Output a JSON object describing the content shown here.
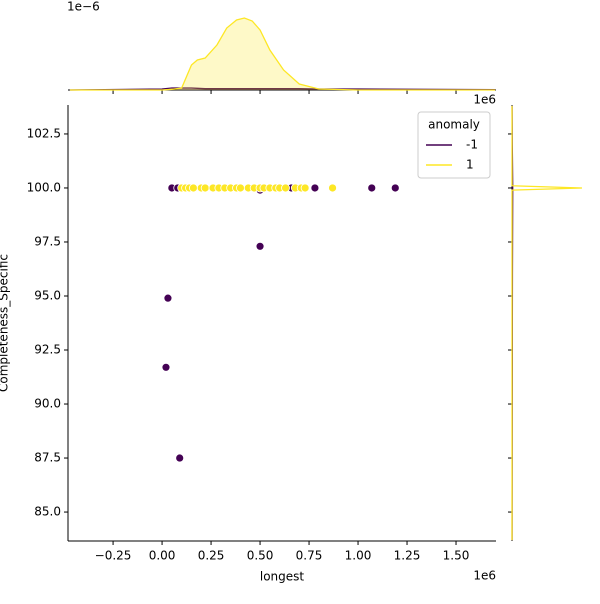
{
  "chart_data": [
    {
      "type": "scatter",
      "xlabel": "longest",
      "ylabel": "Completeness_Specific",
      "x_offset": "1e6",
      "xlim": [
        -0.48,
        1.704
      ],
      "ylim": [
        83.66,
        103.84
      ],
      "xticks": [
        {
          "value": -0.25,
          "label": "−0.25"
        },
        {
          "value": 0,
          "label": "0.00"
        },
        {
          "value": 0.25,
          "label": "0.25"
        },
        {
          "value": 0.5,
          "label": "0.50"
        },
        {
          "value": 0.75,
          "label": "0.75"
        },
        {
          "value": 1,
          "label": "1.00"
        },
        {
          "value": 1.25,
          "label": "1.25"
        },
        {
          "value": 1.5,
          "label": "1.50"
        }
      ],
      "yticks": [
        {
          "value": 85,
          "label": "85.0"
        },
        {
          "value": 87.5,
          "label": "87.5"
        },
        {
          "value": 90,
          "label": "90.0"
        },
        {
          "value": 92.5,
          "label": "92.5"
        },
        {
          "value": 95,
          "label": "95.0"
        },
        {
          "value": 97.5,
          "label": "97.5"
        },
        {
          "value": 100,
          "label": "100.0"
        },
        {
          "value": 102.5,
          "label": "102.5"
        }
      ],
      "legend_title": "anomaly",
      "legend": "upper right",
      "series": [
        {
          "name": "-1",
          "color": "#440154",
          "x": [
            0.05,
            0.08,
            0.5,
            0.66,
            0.78,
            1.07,
            1.19,
            0.5,
            0.03,
            0.02,
            0.09
          ],
          "values": [
            100,
            100,
            99.9,
            100,
            100,
            100,
            100,
            97.3,
            94.9,
            91.7,
            87.5
          ]
        },
        {
          "name": "1",
          "color": "#fde725",
          "x": [
            0.1,
            0.12,
            0.14,
            0.16,
            0.2,
            0.22,
            0.26,
            0.29,
            0.32,
            0.35,
            0.38,
            0.4,
            0.44,
            0.47,
            0.5,
            0.52,
            0.55,
            0.58,
            0.6,
            0.63,
            0.68,
            0.71,
            0.73,
            0.87
          ],
          "values": [
            100,
            100,
            100,
            100,
            100,
            100,
            100,
            100,
            100,
            100,
            100,
            100,
            100,
            100,
            100,
            100,
            100,
            100,
            100,
            100,
            100,
            100,
            100,
            100
          ]
        }
      ]
    },
    {
      "type": "kde",
      "orient": "x",
      "offset_label": "1e−6",
      "x_offset": "1e6",
      "xlim": [
        -0.48,
        1.704
      ],
      "ylim": [
        0,
        2.4
      ],
      "x": [
        -0.47,
        0.0,
        0.05,
        0.1,
        0.15,
        0.18,
        0.22,
        0.28,
        0.33,
        0.38,
        0.42,
        0.46,
        0.5,
        0.55,
        0.62,
        0.7,
        0.8,
        1.0,
        1.7
      ],
      "series": [
        {
          "color": "#440154",
          "values": [
            0,
            0.03,
            0.06,
            0.06,
            0.06,
            0.05,
            0.04,
            0.04,
            0.04,
            0.04,
            0.04,
            0.04,
            0.04,
            0.04,
            0.04,
            0.04,
            0.03,
            0.03,
            0.01
          ]
        },
        {
          "color": "#fde725",
          "values": [
            0,
            0,
            0.02,
            0.06,
            0.75,
            0.9,
            0.96,
            1.35,
            1.86,
            2.1,
            2.16,
            2.07,
            1.8,
            1.2,
            0.6,
            0.18,
            0.03,
            0,
            0
          ]
        }
      ],
      "fill": true
    },
    {
      "type": "kde",
      "orient": "y",
      "xlim": [
        0,
        1
      ],
      "ylim": [
        83.66,
        103.84
      ],
      "y": [
        83.7,
        86,
        88,
        90,
        92,
        94,
        96,
        98,
        99.9,
        100,
        100.1,
        102,
        103.8
      ],
      "series": [
        {
          "color": "#440154",
          "values": [
            0.001,
            0.002,
            0.003,
            0.004,
            0.005,
            0.005,
            0.006,
            0.008,
            0.01,
            0.01,
            0.01,
            0.004,
            0.001
          ]
        },
        {
          "color": "#fde725",
          "values": [
            0,
            0,
            0,
            0,
            0,
            0,
            0,
            0,
            0,
            1,
            0,
            0,
            0
          ]
        }
      ]
    }
  ]
}
